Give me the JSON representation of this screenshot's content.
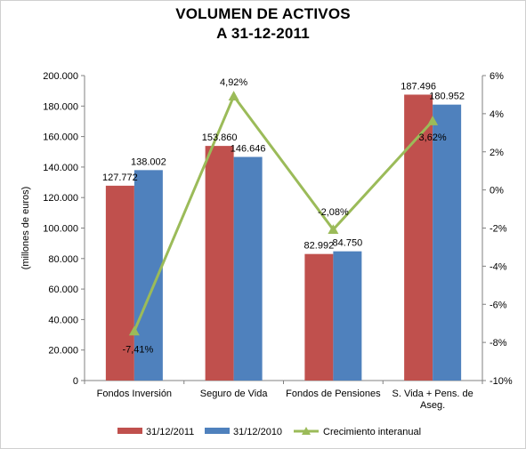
{
  "title": "VOLUMEN DE ACTIVOS",
  "subtitle": "A 31-12-2011",
  "chart_data": {
    "type": "bar",
    "title": "VOLUMEN DE ACTIVOS",
    "subtitle": "A 31-12-2011",
    "categories": [
      "Fondos Inversión",
      "Seguro de Vida",
      "Fondos de Pensiones",
      "S. Vida + Pens. de Aseg."
    ],
    "category_lines": [
      [
        "Fondos Inversión"
      ],
      [
        "Seguro de Vida"
      ],
      [
        "Fondos de Pensiones"
      ],
      [
        "S. Vida + Pens. de",
        "Aseg."
      ]
    ],
    "ylabel": "(millones de euros)",
    "ylim": [
      0,
      200000
    ],
    "yticks": [
      0,
      20000,
      40000,
      60000,
      80000,
      100000,
      120000,
      140000,
      160000,
      180000,
      200000
    ],
    "ytick_labels": [
      "0",
      "20.000",
      "40.000",
      "60.000",
      "80.000",
      "100.000",
      "120.000",
      "140.000",
      "160.000",
      "180.000",
      "200.000"
    ],
    "y2lim": [
      -10,
      6
    ],
    "y2ticks": [
      -10,
      -8,
      -6,
      -4,
      -2,
      0,
      2,
      4,
      6
    ],
    "y2tick_labels": [
      "-10%",
      "-8%",
      "-6%",
      "-4%",
      "-2%",
      "0%",
      "2%",
      "4%",
      "6%"
    ],
    "series": [
      {
        "name": "31/12/2011",
        "type": "bar",
        "color": "#c0504d",
        "values": [
          127772,
          153860,
          82992,
          187496
        ],
        "labels": [
          "127.772",
          "153.860",
          "82.992",
          "187.496"
        ]
      },
      {
        "name": "31/12/2010",
        "type": "bar",
        "color": "#4f81bd",
        "values": [
          138002,
          146646,
          84750,
          180952
        ],
        "labels": [
          "138.002",
          "146.646",
          "84.750",
          "180.952"
        ]
      },
      {
        "name": "Crecimiento interanual",
        "type": "line",
        "axis": "secondary",
        "color": "#9bbb59",
        "values": [
          -7.41,
          4.92,
          -2.08,
          3.62
        ],
        "labels": [
          "-7,41%",
          "4,92%",
          "-2,08%",
          "3,62%"
        ]
      }
    ],
    "legend_position": "bottom",
    "grid": false
  }
}
